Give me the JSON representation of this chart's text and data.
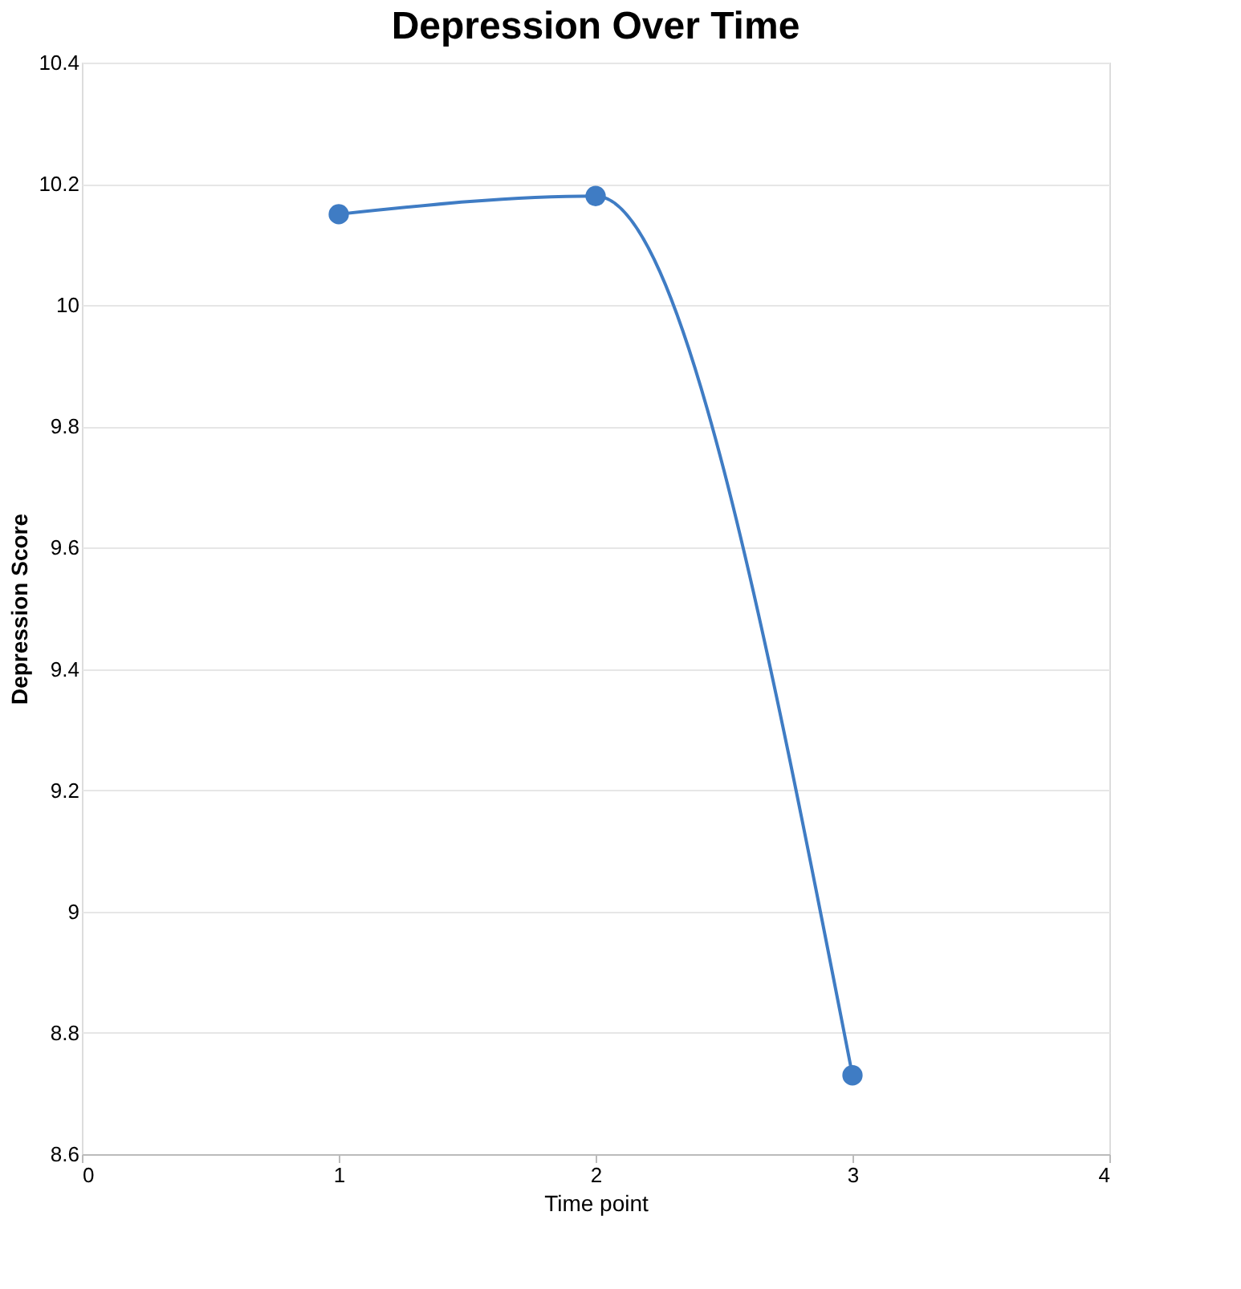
{
  "chart_data": {
    "type": "line",
    "title": "Depression Over Time",
    "xlabel": "Time point",
    "ylabel": "Depression Score",
    "x": [
      1,
      2,
      3
    ],
    "series": [
      {
        "color": "#3f7cc4",
        "values": [
          10.15,
          10.18,
          8.73
        ]
      }
    ],
    "marker": "circle",
    "xlim": [
      0,
      4
    ],
    "xticks": [
      0,
      1,
      2,
      3,
      4
    ],
    "ylim": [
      8.6,
      10.4
    ],
    "yticks": [
      8.6,
      8.8,
      9,
      9.2,
      9.4,
      9.6,
      9.8,
      10,
      10.2,
      10.4
    ],
    "grid": "y"
  }
}
